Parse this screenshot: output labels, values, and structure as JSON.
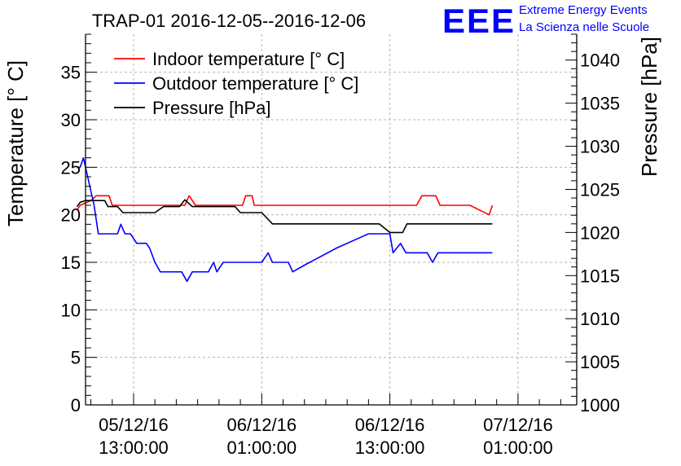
{
  "chart_data": {
    "type": "line",
    "title": "TRAP-01 2016-12-05--2016-12-06",
    "ylabel": "Temperature [° C]",
    "y2label": "Pressure [hPa]",
    "ylim": [
      0,
      39
    ],
    "y2lim": [
      1000,
      1043
    ],
    "yticks": [
      0,
      5,
      10,
      15,
      20,
      25,
      30,
      35
    ],
    "y2ticks": [
      1000,
      1005,
      1010,
      1015,
      1020,
      1025,
      1030,
      1035,
      1040
    ],
    "x_hours_range": [
      -4.5,
      41.5
    ],
    "xticks": [
      {
        "t": 0,
        "line1": "05/12/16",
        "line2": "13:00:00"
      },
      {
        "t": 12,
        "line1": "06/12/16",
        "line2": "01:00:00"
      },
      {
        "t": 24,
        "line1": "06/12/16",
        "line2": "13:00:00"
      },
      {
        "t": 36,
        "line1": "07/12/16",
        "line2": "01:00:00"
      }
    ],
    "grid": true,
    "legend_position": "top-left",
    "series": [
      {
        "name": "Indoor temperature [° C]",
        "axis": "left",
        "color": "#ff0000",
        "points": [
          [
            -5.3,
            20.5
          ],
          [
            -5,
            21
          ],
          [
            -4,
            21.5
          ],
          [
            -3.5,
            22
          ],
          [
            -2.3,
            22
          ],
          [
            -2,
            21
          ],
          [
            0,
            21
          ],
          [
            1,
            21
          ],
          [
            4.8,
            21
          ],
          [
            5.2,
            22
          ],
          [
            5.8,
            21
          ],
          [
            8,
            21
          ],
          [
            10.2,
            21
          ],
          [
            10.5,
            22
          ],
          [
            11.1,
            22
          ],
          [
            11.3,
            21
          ],
          [
            13,
            21
          ],
          [
            16,
            21
          ],
          [
            20,
            21
          ],
          [
            23,
            21
          ],
          [
            26.5,
            21
          ],
          [
            27,
            22
          ],
          [
            28.3,
            22
          ],
          [
            28.7,
            21
          ],
          [
            30,
            21
          ],
          [
            31.5,
            21
          ],
          [
            33.3,
            20
          ],
          [
            33.6,
            21
          ]
        ]
      },
      {
        "name": "Outdoor temperature [° C]",
        "axis": "left",
        "color": "#0000ff",
        "points": [
          [
            -5.3,
            25
          ],
          [
            -5,
            25
          ],
          [
            -4.7,
            26
          ],
          [
            -3.7,
            21
          ],
          [
            -3.3,
            18
          ],
          [
            -2.5,
            18
          ],
          [
            -1.5,
            18
          ],
          [
            -1.2,
            19
          ],
          [
            -0.8,
            18
          ],
          [
            -0.3,
            18
          ],
          [
            0.3,
            17
          ],
          [
            1.2,
            17
          ],
          [
            1.5,
            16.5
          ],
          [
            2,
            15
          ],
          [
            2.5,
            14
          ],
          [
            4.5,
            14
          ],
          [
            5,
            13
          ],
          [
            5.5,
            14
          ],
          [
            7,
            14
          ],
          [
            7.5,
            15
          ],
          [
            7.8,
            14
          ],
          [
            8.4,
            15
          ],
          [
            10,
            15
          ],
          [
            12,
            15
          ],
          [
            12.6,
            16
          ],
          [
            13,
            15
          ],
          [
            14.5,
            15
          ],
          [
            14.9,
            14
          ],
          [
            16,
            14.7
          ],
          [
            19,
            16.5
          ],
          [
            21,
            17.5
          ],
          [
            22,
            18
          ],
          [
            24,
            18
          ],
          [
            24.3,
            16
          ],
          [
            25,
            17
          ],
          [
            25.5,
            16
          ],
          [
            27.5,
            16
          ],
          [
            28,
            15
          ],
          [
            28.5,
            16
          ],
          [
            30,
            16
          ],
          [
            31.5,
            16
          ],
          [
            33.6,
            16
          ]
        ]
      },
      {
        "name": "Pressure [hPa]",
        "axis": "right",
        "color": "#000000",
        "points": [
          [
            -5.3,
            1023
          ],
          [
            -5,
            1023.5
          ],
          [
            -4.5,
            1023.7
          ],
          [
            -3.5,
            1023.7
          ],
          [
            -2.7,
            1023.7
          ],
          [
            -2.4,
            1023
          ],
          [
            -1.5,
            1023
          ],
          [
            -1,
            1022.3
          ],
          [
            0,
            1022.3
          ],
          [
            2,
            1022.3
          ],
          [
            2.8,
            1023
          ],
          [
            4.3,
            1023
          ],
          [
            4.8,
            1023.8
          ],
          [
            5.5,
            1023
          ],
          [
            9.5,
            1023
          ],
          [
            10,
            1022.3
          ],
          [
            12,
            1022.3
          ],
          [
            13,
            1021
          ],
          [
            16,
            1021
          ],
          [
            20,
            1021
          ],
          [
            23,
            1021
          ],
          [
            24,
            1020
          ],
          [
            25.2,
            1020
          ],
          [
            25.6,
            1021
          ],
          [
            28,
            1021
          ],
          [
            31,
            1021
          ],
          [
            33.6,
            1021
          ]
        ]
      }
    ]
  },
  "legend": {
    "items": [
      {
        "label": "Indoor temperature [° C]",
        "color": "#ff0000"
      },
      {
        "label": "Outdoor temperature [° C]",
        "color": "#0000ff"
      },
      {
        "label": "Pressure [hPa]",
        "color": "#000000"
      }
    ]
  },
  "logo": {
    "mark": "EEE",
    "line1": "Extreme Energy Events",
    "line2": "La Scienza nelle Scuole",
    "color": "#0000ff"
  }
}
